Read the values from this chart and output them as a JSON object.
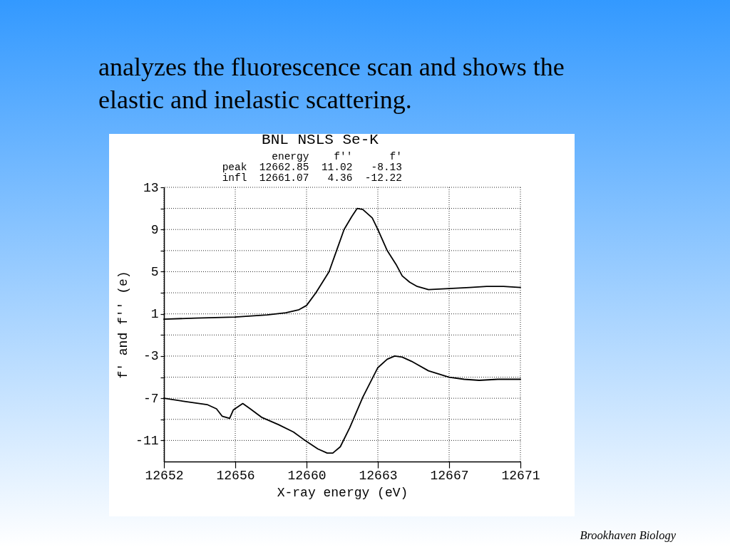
{
  "chart_data": {
    "type": "line",
    "title": "analyzes the fluorescence scan and shows the elastic and inelastic scattering.",
    "subtitle": "BNL NSLS Se-K",
    "xlabel": "X-ray energy (eV)",
    "ylabel": "f' and f'' (e)",
    "annotations": [
      "energy f'' f'",
      "peak 12662.85 11.02 -8.13",
      "infl 12661.07 4.36 -12.22",
      "Brookhaven Biology"
    ],
    "xlim": [
      12652,
      12671
    ],
    "ylim": [
      -13,
      13
    ],
    "xticks": [
      12652,
      {
        "value": 12655.8,
        "label": "12656"
      },
      {
        "value": 12659.6,
        "label": "12660"
      },
      {
        "value": 12663.4,
        "label": "12663"
      },
      {
        "value": 12667.2,
        "label": "12667"
      },
      12671
    ],
    "yticks": [
      13,
      {
        "value": 11,
        "label": null
      },
      9,
      {
        "value": 7,
        "label": null
      },
      5,
      {
        "value": 3,
        "label": null
      },
      1,
      {
        "value": -1,
        "label": null
      },
      -3,
      {
        "value": -5,
        "label": null
      },
      -7,
      {
        "value": -9,
        "label": null
      },
      -11
    ],
    "grid": true,
    "line_style": "solid",
    "series": [
      {
        "color": "#000000",
        "x": [
          12652.0,
          12653.7,
          12655.8,
          12657.5,
          12658.5,
          12659.2,
          12659.6,
          12660.1,
          12660.8,
          12661.2,
          12661.6,
          12662.0,
          12662.3,
          12662.6,
          12663.1,
          12663.4,
          12663.9,
          12664.4,
          12664.7,
          12665.1,
          12665.5,
          12666.1,
          12667.2,
          12668.3,
          12669.2,
          12670.1,
          12671.0
        ],
        "values": [
          0.5,
          0.6,
          0.7,
          0.9,
          1.1,
          1.4,
          1.8,
          3.0,
          5.0,
          7.0,
          9.0,
          10.2,
          11.0,
          10.9,
          10.1,
          9.0,
          7.0,
          5.6,
          4.6,
          4.0,
          3.6,
          3.3,
          3.4,
          3.5,
          3.6,
          3.6,
          3.5
        ]
      },
      {
        "color": "#000000",
        "x": [
          12652.0,
          12653.1,
          12654.3,
          12654.8,
          12655.1,
          12655.5,
          12655.7,
          12656.2,
          12656.6,
          12657.2,
          12658.1,
          12658.9,
          12659.6,
          12660.2,
          12660.7,
          12661.0,
          12661.4,
          12661.9,
          12662.6,
          12663.4,
          12663.9,
          12664.3,
          12664.7,
          12665.2,
          12666.1,
          12667.2,
          12668.0,
          12668.8,
          12669.8,
          12671.0
        ],
        "values": [
          -7.0,
          -7.3,
          -7.6,
          -8.0,
          -8.7,
          -8.9,
          -8.1,
          -7.5,
          -8.0,
          -8.8,
          -9.5,
          -10.2,
          -11.1,
          -11.8,
          -12.2,
          -12.2,
          -11.6,
          -9.8,
          -6.9,
          -4.1,
          -3.3,
          -3.0,
          -3.1,
          -3.5,
          -4.4,
          -5.0,
          -5.2,
          -5.3,
          -5.2,
          -5.2
        ]
      }
    ]
  }
}
